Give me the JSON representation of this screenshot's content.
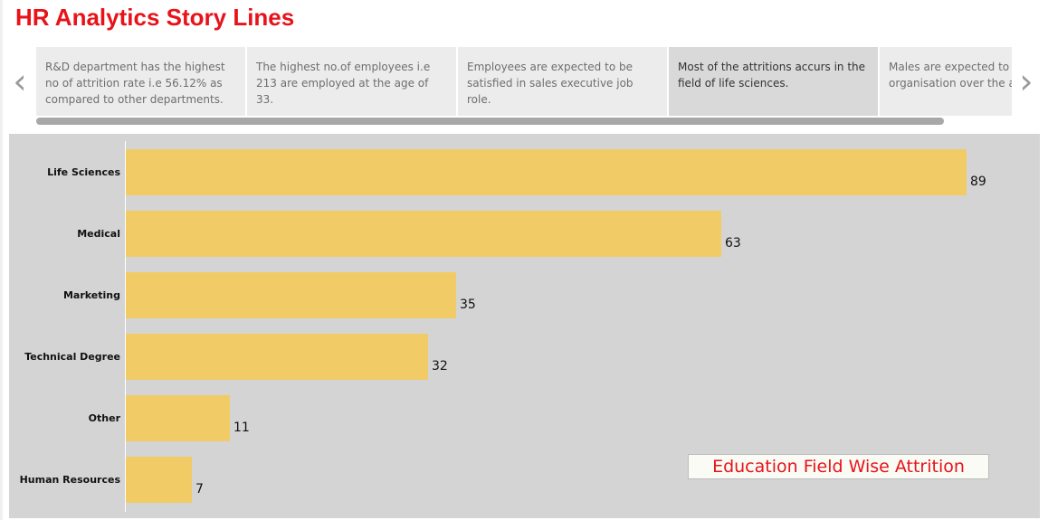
{
  "dashboard": {
    "title": "HR Analytics Story Lines"
  },
  "story": {
    "prev_arrow": "‹",
    "next_arrow": "›",
    "points": [
      {
        "text": "R&D department has the highest no of attrition rate i.e 56.12% as compared to other departments.",
        "active": false
      },
      {
        "text": "The highest no.of employees i.e 213 are employed at the age of 33.",
        "active": false
      },
      {
        "text": "Employees are expected to be satisfied in sales executive job role.",
        "active": false
      },
      {
        "text": "Most of the attritions accurs in the field of life sciences.",
        "active": true
      },
      {
        "text": "Males are expected to leave the organisation over the age",
        "active": false
      }
    ],
    "scroll_fraction": 0.93
  },
  "colors": {
    "title": "#e8131a",
    "bar": "#f0cb66",
    "chart_background": "#d4d4d4"
  },
  "chart_data": {
    "type": "bar",
    "orientation": "horizontal",
    "title": "Education Field Wise Attrition",
    "categories": [
      "Life Sciences",
      "Medical",
      "Marketing",
      "Technical Degree",
      "Other",
      "Human Resources"
    ],
    "values": [
      89,
      63,
      35,
      32,
      11,
      7
    ],
    "xlim": [
      0,
      89
    ],
    "grid": false,
    "data_labels": true
  }
}
